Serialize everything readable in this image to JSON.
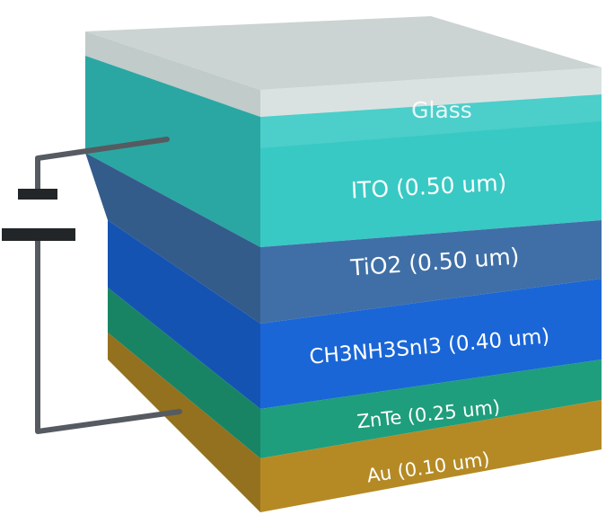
{
  "diagram": {
    "layers": [
      {
        "id": "glass",
        "label": "Glass",
        "front": "#cfd9d8",
        "side": "#b6c2c1"
      },
      {
        "id": "ito",
        "label": "ITO (0.50 um)",
        "front": "#38c9c4",
        "side": "#2aa7a3"
      },
      {
        "id": "tio2",
        "label": "TiO2 (0.50 um)",
        "front": "#3f6fa6",
        "side": "#335c8b"
      },
      {
        "id": "perovskite",
        "label": "CH3NH3SnI3 (0.40 um)",
        "front": "#1a66d6",
        "side": "#1553b2"
      },
      {
        "id": "znte",
        "label": "ZnTe (0.25 um)",
        "front": "#1e9e7c",
        "side": "#188464"
      },
      {
        "id": "au",
        "label": "Au (0.10 um)",
        "front": "#b58a25",
        "side": "#94711e"
      }
    ],
    "wire_color": "#555b60"
  }
}
